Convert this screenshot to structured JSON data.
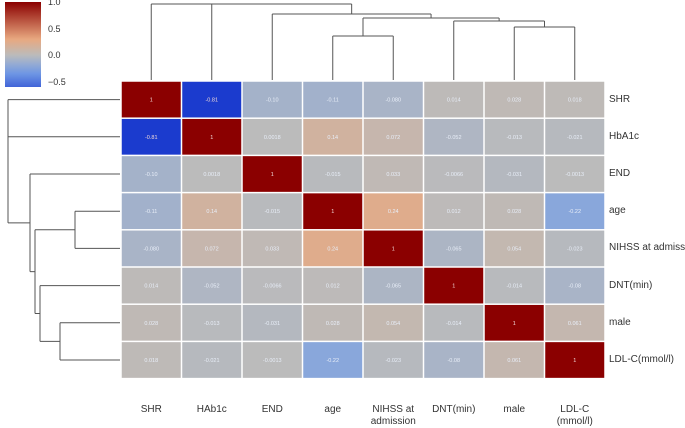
{
  "chart_data": {
    "type": "heatmap",
    "title": "",
    "rows": [
      "SHR",
      "HbA1c",
      "END",
      "age",
      "NIHSS at admission",
      "DNT(min)",
      "male",
      "LDL-C(mmol/l)"
    ],
    "columns": [
      "SHR",
      "HAb1c",
      "END",
      "age",
      "NIHSS at admission",
      "DNT(min)",
      "male",
      "LDL-C\n(mmol/l)"
    ],
    "values": [
      [
        1,
        -0.81,
        -0.1,
        -0.11,
        -0.08,
        0.014,
        0.028,
        0.018
      ],
      [
        -0.81,
        1,
        0.0018,
        0.14,
        0.072,
        -0.052,
        -0.013,
        -0.021
      ],
      [
        -0.1,
        0.0018,
        1,
        -0.015,
        0.033,
        -0.0066,
        -0.031,
        -0.0013
      ],
      [
        -0.11,
        0.14,
        -0.015,
        1,
        0.24,
        0.012,
        0.028,
        -0.22
      ],
      [
        -0.08,
        0.072,
        0.033,
        0.24,
        1,
        -0.065,
        0.054,
        -0.023
      ],
      [
        0.014,
        -0.052,
        -0.0066,
        0.012,
        -0.065,
        1,
        -0.014,
        -0.08
      ],
      [
        0.028,
        -0.013,
        -0.031,
        0.028,
        0.054,
        -0.014,
        1,
        0.061
      ],
      [
        0.018,
        -0.021,
        -0.0013,
        -0.22,
        -0.023,
        -0.08,
        0.061,
        1
      ]
    ],
    "cell_labels": [
      [
        "1",
        "-0.81",
        "-0.10",
        "-0.11",
        "-0.080",
        "0.014",
        "0.028",
        "0.018"
      ],
      [
        "-0.81",
        "1",
        "0.0018",
        "0.14",
        "0.072",
        "-0.052",
        "-0.013",
        "-0.021"
      ],
      [
        "-0.10",
        "0.0018",
        "1",
        "-0.015",
        "0.033",
        "-0.0066",
        "-0.031",
        "-0.0013"
      ],
      [
        "-0.11",
        "0.14",
        "-0.015",
        "1",
        "0.24",
        "0.012",
        "0.028",
        "-0.22"
      ],
      [
        "-0.080",
        "0.072",
        "0.033",
        "0.24",
        "1",
        "-0.065",
        "0.054",
        "-0.023"
      ],
      [
        "0.014",
        "-0.052",
        "-0.0066",
        "0.012",
        "-0.065",
        "1",
        "-0.014",
        "-0.08"
      ],
      [
        "0.028",
        "-0.013",
        "-0.031",
        "0.028",
        "0.054",
        "-0.014",
        "1",
        "0.061"
      ],
      [
        "0.018",
        "-0.021",
        "-0.0013",
        "-0.22",
        "-0.023",
        "-0.08",
        "0.061",
        "1"
      ]
    ],
    "colorbar": {
      "min": -0.6,
      "max": 1.0,
      "ticks": [
        {
          "value": 1.0,
          "label": "1.0"
        },
        {
          "value": 0.5,
          "label": "0.5"
        },
        {
          "value": 0.0,
          "label": "0.0"
        },
        {
          "value": -0.5,
          "label": "−0.5"
        }
      ],
      "colors": {
        "low": "#1433cc",
        "mid": "#bbbbbb",
        "high": "#8b0000",
        "orange": "#e8a880"
      }
    },
    "dendrogram": "hierarchical clustering on rows and columns"
  }
}
